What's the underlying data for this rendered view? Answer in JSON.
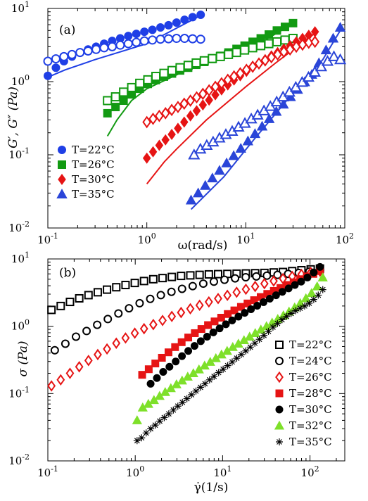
{
  "chart_data": [
    {
      "type": "scatter",
      "panel_label": "(a)",
      "xlabel": "ω(rad/s)",
      "ylabel": "G′, G″ (Pa)",
      "xscale": "log",
      "yscale": "log",
      "xlim": [
        0.1,
        100
      ],
      "ylim": [
        0.01,
        10
      ],
      "xticks": [
        {
          "v": 0.1,
          "base": "10",
          "exp": "-1"
        },
        {
          "v": 1,
          "base": "10",
          "exp": "0"
        },
        {
          "v": 10,
          "base": "10",
          "exp": "1"
        },
        {
          "v": 100,
          "base": "10",
          "exp": "2"
        }
      ],
      "yticks": [
        {
          "v": 0.01,
          "base": "10",
          "exp": "-2"
        },
        {
          "v": 0.1,
          "base": "10",
          "exp": "-1"
        },
        {
          "v": 1,
          "base": "10",
          "exp": "0"
        },
        {
          "v": 10,
          "base": "10",
          "exp": "1"
        }
      ],
      "legend_position": "bottom-left",
      "legend": [
        {
          "label": "T=22°C",
          "color": "#1f3fe6",
          "marker": "circle"
        },
        {
          "label": "T=26°C",
          "color": "#129a12",
          "marker": "square"
        },
        {
          "label": "T=30°C",
          "color": "#e61414",
          "marker": "diamond"
        },
        {
          "label": "T=35°C",
          "color": "#2a45d8",
          "marker": "triangle"
        }
      ],
      "series": [
        {
          "group": "T=22°C",
          "role": "G′",
          "marker": "circle",
          "filled": true,
          "color": "#1f3fe6",
          "x_range": [
            0.1,
            3.5
          ],
          "n": 20,
          "y": [
            1.2,
            1.55,
            1.9,
            2.2,
            2.5,
            2.75,
            3.0,
            3.3,
            3.6,
            3.9,
            4.2,
            4.5,
            4.8,
            5.1,
            5.5,
            5.9,
            6.4,
            7.0,
            7.6,
            8.2
          ]
        },
        {
          "group": "T=22°C",
          "role": "G″",
          "marker": "circle",
          "filled": false,
          "color": "#1f3fe6",
          "x_range": [
            0.1,
            3.5
          ],
          "n": 20,
          "y": [
            1.9,
            2.05,
            2.2,
            2.35,
            2.5,
            2.62,
            2.75,
            2.9,
            3.0,
            3.15,
            3.3,
            3.45,
            3.6,
            3.7,
            3.8,
            3.85,
            3.9,
            3.9,
            3.85,
            3.8
          ]
        },
        {
          "group": "T=26°C",
          "role": "G′",
          "marker": "square",
          "filled": true,
          "color": "#129a12",
          "x_range": [
            0.4,
            30
          ],
          "n": 24,
          "y": [
            0.37,
            0.45,
            0.55,
            0.67,
            0.8,
            0.93,
            1.05,
            1.17,
            1.29,
            1.42,
            1.55,
            1.7,
            1.86,
            2.04,
            2.25,
            2.5,
            2.8,
            3.1,
            3.5,
            3.9,
            4.4,
            5.0,
            5.6,
            6.3
          ]
        },
        {
          "group": "T=26°C",
          "role": "G″",
          "marker": "square",
          "filled": false,
          "color": "#129a12",
          "x_range": [
            0.4,
            30
          ],
          "n": 24,
          "y": [
            0.55,
            0.62,
            0.72,
            0.83,
            0.95,
            1.06,
            1.18,
            1.3,
            1.42,
            1.55,
            1.67,
            1.8,
            1.93,
            2.07,
            2.2,
            2.35,
            2.5,
            2.7,
            2.9,
            3.1,
            3.3,
            3.5,
            3.7,
            3.9
          ]
        },
        {
          "group": "T=30°C",
          "role": "G′",
          "marker": "diamond",
          "filled": true,
          "color": "#e61414",
          "x_range": [
            1.0,
            50
          ],
          "n": 28,
          "y": [
            0.09,
            0.11,
            0.135,
            0.16,
            0.19,
            0.23,
            0.28,
            0.34,
            0.4,
            0.48,
            0.56,
            0.66,
            0.77,
            0.9,
            1.05,
            1.2,
            1.38,
            1.57,
            1.77,
            2.0,
            2.25,
            2.5,
            2.8,
            3.1,
            3.5,
            3.9,
            4.3,
            4.8
          ]
        },
        {
          "group": "T=30°C",
          "role": "G″",
          "marker": "diamond",
          "filled": false,
          "color": "#e61414",
          "x_range": [
            1.0,
            50
          ],
          "n": 28,
          "y": [
            0.28,
            0.31,
            0.34,
            0.37,
            0.41,
            0.45,
            0.5,
            0.55,
            0.61,
            0.68,
            0.76,
            0.85,
            0.95,
            1.06,
            1.18,
            1.3,
            1.45,
            1.6,
            1.77,
            1.95,
            2.15,
            2.35,
            2.55,
            2.75,
            3.0,
            3.2,
            3.4,
            3.5
          ]
        },
        {
          "group": "T=35°C",
          "role": "G′",
          "marker": "triangle",
          "filled": true,
          "color": "#2a45d8",
          "x_range": [
            2.8,
            90
          ],
          "n": 22,
          "y": [
            0.024,
            0.03,
            0.038,
            0.048,
            0.061,
            0.077,
            0.097,
            0.122,
            0.154,
            0.194,
            0.245,
            0.31,
            0.39,
            0.49,
            0.62,
            0.78,
            0.99,
            1.25,
            1.8,
            2.7,
            3.9,
            5.5
          ]
        },
        {
          "group": "T=35°C",
          "role": "G″",
          "marker": "triangle",
          "filled": false,
          "color": "#2a45d8",
          "x_range": [
            3.0,
            90
          ],
          "n": 24,
          "y": [
            0.1,
            0.12,
            0.135,
            0.15,
            0.17,
            0.19,
            0.21,
            0.24,
            0.27,
            0.31,
            0.35,
            0.4,
            0.46,
            0.53,
            0.62,
            0.72,
            0.84,
            0.98,
            1.15,
            1.35,
            1.6,
            1.9,
            2.2,
            2.0
          ]
        }
      ],
      "fit_lines": [
        {
          "group": "T=22°C",
          "color": "#1f3fe6",
          "points": [
            [
              0.1,
              1.15
            ],
            [
              0.15,
              1.45
            ],
            [
              0.3,
              2.0
            ],
            [
              1.0,
              3.3
            ],
            [
              3.5,
              8.0
            ]
          ]
        },
        {
          "group": "T=26°C",
          "color": "#129a12",
          "points": [
            [
              0.4,
              0.18
            ],
            [
              0.5,
              0.3
            ],
            [
              0.7,
              0.55
            ],
            [
              1.0,
              0.8
            ],
            [
              3.0,
              1.6
            ],
            [
              10,
              2.6
            ],
            [
              30,
              6.2
            ]
          ]
        },
        {
          "group": "T=30°C",
          "color": "#e61414",
          "points": [
            [
              1.0,
              0.04
            ],
            [
              1.5,
              0.08
            ],
            [
              2.0,
              0.12
            ],
            [
              4.0,
              0.3
            ],
            [
              10,
              0.85
            ],
            [
              20,
              1.8
            ],
            [
              50,
              4.6
            ]
          ]
        },
        {
          "group": "T=35°C",
          "color": "#2a45d8",
          "points": [
            [
              2.8,
              0.018
            ],
            [
              6.0,
              0.05
            ],
            [
              12,
              0.16
            ],
            [
              30,
              0.7
            ],
            [
              60,
              2.0
            ],
            [
              90,
              5.0
            ]
          ]
        }
      ]
    },
    {
      "type": "scatter",
      "panel_label": "(b)",
      "xlabel": "γ̇(1/s)",
      "ylabel": "σ (Pa)",
      "xscale": "log",
      "yscale": "log",
      "xlim": [
        0.1,
        250
      ],
      "ylim": [
        0.01,
        10
      ],
      "xticks": [
        {
          "v": 0.1,
          "base": "10",
          "exp": "-1"
        },
        {
          "v": 1,
          "base": "10",
          "exp": "0"
        },
        {
          "v": 10,
          "base": "10",
          "exp": "1"
        },
        {
          "v": 100,
          "base": "10",
          "exp": "2"
        }
      ],
      "yticks": [
        {
          "v": 0.01,
          "base": "10",
          "exp": "-2"
        },
        {
          "v": 0.1,
          "base": "10",
          "exp": "-1"
        },
        {
          "v": 1,
          "base": "10",
          "exp": "0"
        },
        {
          "v": 10,
          "base": "10",
          "exp": "1"
        }
      ],
      "legend_position": "right",
      "legend": [
        {
          "label": "T=22°C",
          "color": "#000000",
          "marker": "square",
          "filled": false
        },
        {
          "label": "T=24°C",
          "color": "#000000",
          "marker": "circle",
          "filled": false
        },
        {
          "label": "T=26°C",
          "color": "#e61414",
          "marker": "diamond",
          "filled": false
        },
        {
          "label": "T=28°C",
          "color": "#e61414",
          "marker": "square",
          "filled": true
        },
        {
          "label": "T=30°C",
          "color": "#000000",
          "marker": "circle",
          "filled": true
        },
        {
          "label": "T=32°C",
          "color": "#7ee02a",
          "marker": "triangle",
          "filled": true
        },
        {
          "label": "T=35°C",
          "color": "#000000",
          "marker": "star",
          "filled": true
        }
      ],
      "series": [
        {
          "name": "T=22°C",
          "marker": "square",
          "filled": false,
          "color": "#000000",
          "x_range": [
            0.11,
            130
          ],
          "n": 30,
          "y": [
            1.75,
            2.0,
            2.3,
            2.6,
            2.9,
            3.2,
            3.5,
            3.8,
            4.1,
            4.4,
            4.7,
            5.0,
            5.2,
            5.4,
            5.6,
            5.7,
            5.8,
            5.9,
            5.95,
            6.0,
            6.05,
            6.1,
            6.15,
            6.2,
            6.3,
            6.4,
            6.6,
            6.8,
            7.0,
            7.2
          ]
        },
        {
          "name": "T=24°C",
          "marker": "circle",
          "filled": false,
          "color": "#000000",
          "x_range": [
            0.12,
            130
          ],
          "n": 26,
          "y": [
            0.44,
            0.55,
            0.7,
            0.85,
            1.05,
            1.28,
            1.55,
            1.85,
            2.2,
            2.55,
            2.9,
            3.25,
            3.6,
            3.95,
            4.3,
            4.6,
            4.9,
            5.15,
            5.35,
            5.5,
            5.65,
            5.8,
            6.0,
            6.2,
            6.5,
            6.8
          ]
        },
        {
          "name": "T=26°C",
          "marker": "diamond",
          "filled": false,
          "color": "#e61414",
          "x_range": [
            0.11,
            130
          ],
          "n": 30,
          "y": [
            0.13,
            0.16,
            0.2,
            0.25,
            0.31,
            0.38,
            0.46,
            0.56,
            0.67,
            0.79,
            0.92,
            1.06,
            1.22,
            1.4,
            1.6,
            1.82,
            2.05,
            2.3,
            2.58,
            2.88,
            3.2,
            3.55,
            3.9,
            4.3,
            4.7,
            5.1,
            5.5,
            5.9,
            6.3,
            6.6
          ]
        },
        {
          "name": "T=28°C",
          "marker": "square",
          "filled": true,
          "color": "#e61414",
          "x_range": [
            1.2,
            130
          ],
          "n": 28,
          "y": [
            0.19,
            0.23,
            0.28,
            0.34,
            0.41,
            0.49,
            0.58,
            0.68,
            0.79,
            0.91,
            1.04,
            1.18,
            1.34,
            1.52,
            1.72,
            1.94,
            2.18,
            2.44,
            2.72,
            3.02,
            3.35,
            3.7,
            4.1,
            4.5,
            5.0,
            5.5,
            6.0,
            6.6
          ]
        },
        {
          "name": "T=30°C",
          "marker": "circle",
          "filled": true,
          "color": "#000000",
          "x_range": [
            1.5,
            130
          ],
          "n": 28,
          "y": [
            0.14,
            0.17,
            0.21,
            0.25,
            0.3,
            0.36,
            0.43,
            0.51,
            0.6,
            0.7,
            0.81,
            0.93,
            1.07,
            1.22,
            1.39,
            1.58,
            1.79,
            2.02,
            2.28,
            2.57,
            2.89,
            3.25,
            3.65,
            4.1,
            4.6,
            5.3,
            6.3,
            7.6
          ]
        },
        {
          "name": "T=32°C",
          "marker": "triangle",
          "filled": true,
          "color": "#7ee02a",
          "x_range": [
            1.05,
            140
          ],
          "n": 34,
          "y": [
            0.04,
            0.062,
            0.07,
            0.08,
            0.092,
            0.105,
            0.12,
            0.137,
            0.156,
            0.178,
            0.2,
            0.228,
            0.26,
            0.295,
            0.335,
            0.38,
            0.43,
            0.49,
            0.55,
            0.62,
            0.7,
            0.79,
            0.89,
            1.0,
            1.13,
            1.28,
            1.45,
            1.65,
            1.9,
            2.2,
            2.6,
            3.1,
            3.9,
            5.3
          ]
        },
        {
          "name": "T=35°C",
          "marker": "star",
          "filled": true,
          "color": "#000000",
          "x_range": [
            1.05,
            140
          ],
          "n": 42,
          "y": [
            0.02,
            0.022,
            0.026,
            0.03,
            0.034,
            0.039,
            0.044,
            0.05,
            0.057,
            0.065,
            0.074,
            0.084,
            0.096,
            0.109,
            0.124,
            0.14,
            0.16,
            0.18,
            0.205,
            0.23,
            0.26,
            0.295,
            0.335,
            0.38,
            0.43,
            0.49,
            0.56,
            0.64,
            0.73,
            0.84,
            0.97,
            1.1,
            1.25,
            1.4,
            1.55,
            1.7,
            1.85,
            2.0,
            2.2,
            2.5,
            2.9,
            3.5
          ]
        }
      ]
    }
  ]
}
